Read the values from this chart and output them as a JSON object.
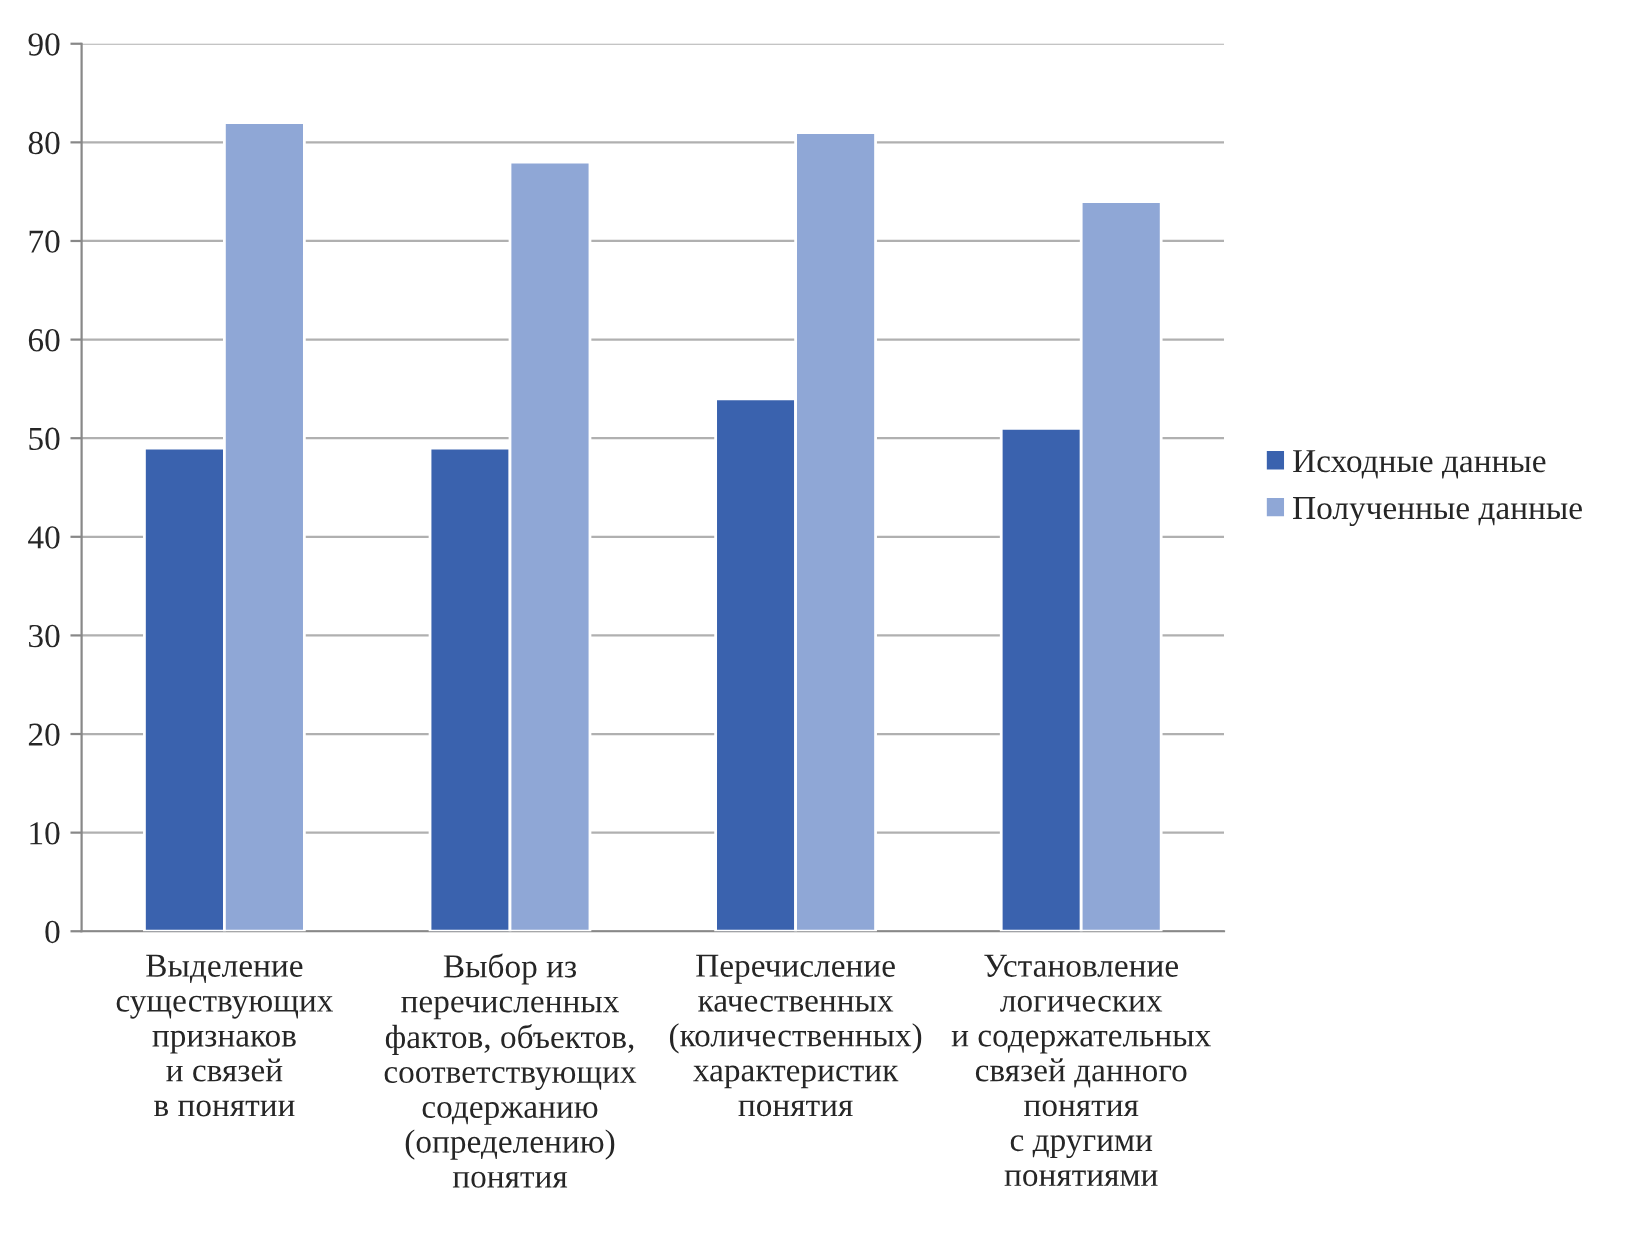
{
  "chart_data": {
    "type": "bar",
    "categories": [
      "Выделение\nсуществующих\nпризнаков\nи связей\nв понятии",
      "Выбор из\nперечисленных\nфактов, объектов,\nсоответствующих\nсодержанию\n(определению)\nпонятия",
      "Перечисление\nкачественных\n(количественных)\nхарактеристик\nпонятия",
      "Установление\nлогических\nи содержательных\nсвязей данного\nпонятия\nс другими\nпонятиями"
    ],
    "series": [
      {
        "name": "Исходные данные",
        "color": "#3a62ae",
        "values": [
          49,
          49,
          54,
          51
        ]
      },
      {
        "name": "Полученные данные",
        "color": "#8fa7d6",
        "values": [
          82,
          78,
          81,
          74
        ]
      }
    ],
    "ylim": [
      0,
      90
    ],
    "yticks": [
      0,
      10,
      20,
      30,
      40,
      50,
      60,
      70,
      80,
      90
    ],
    "grid": "y",
    "legend": "right"
  }
}
